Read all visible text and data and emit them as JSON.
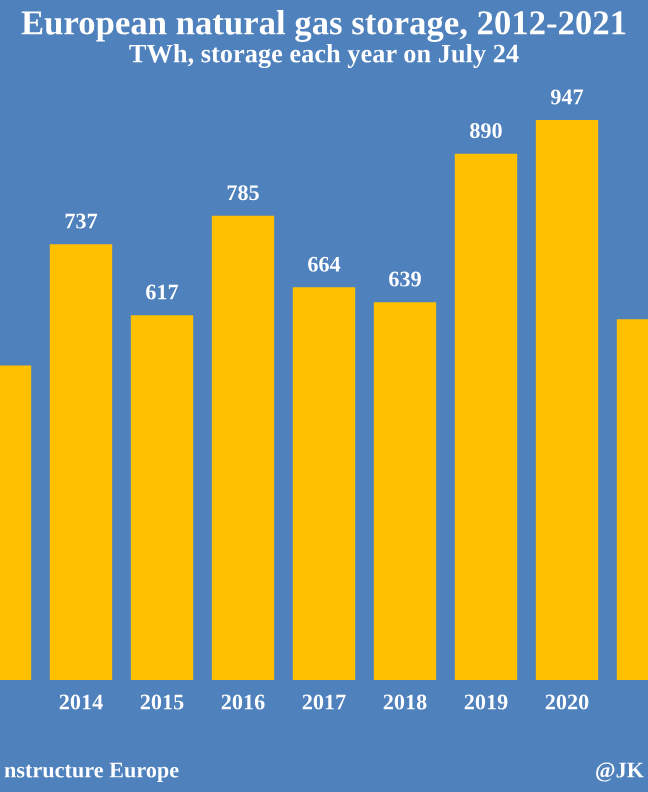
{
  "chart_data": {
    "type": "bar",
    "title": "European natural gas storage, 2012-2021",
    "subtitle": "TWh, storage each year on July 24",
    "categories": [
      null,
      "2014",
      "2015",
      "2016",
      "2017",
      "2018",
      "2019",
      "2020",
      null
    ],
    "values": [
      532,
      737,
      617,
      785,
      664,
      639,
      890,
      947,
      610
    ],
    "value_labels": [
      null,
      "737",
      "617",
      "785",
      "664",
      "639",
      "890",
      "947",
      null
    ],
    "color": "#ffc000",
    "annotations": [
      "nstructure Europe",
      "@JK"
    ]
  }
}
